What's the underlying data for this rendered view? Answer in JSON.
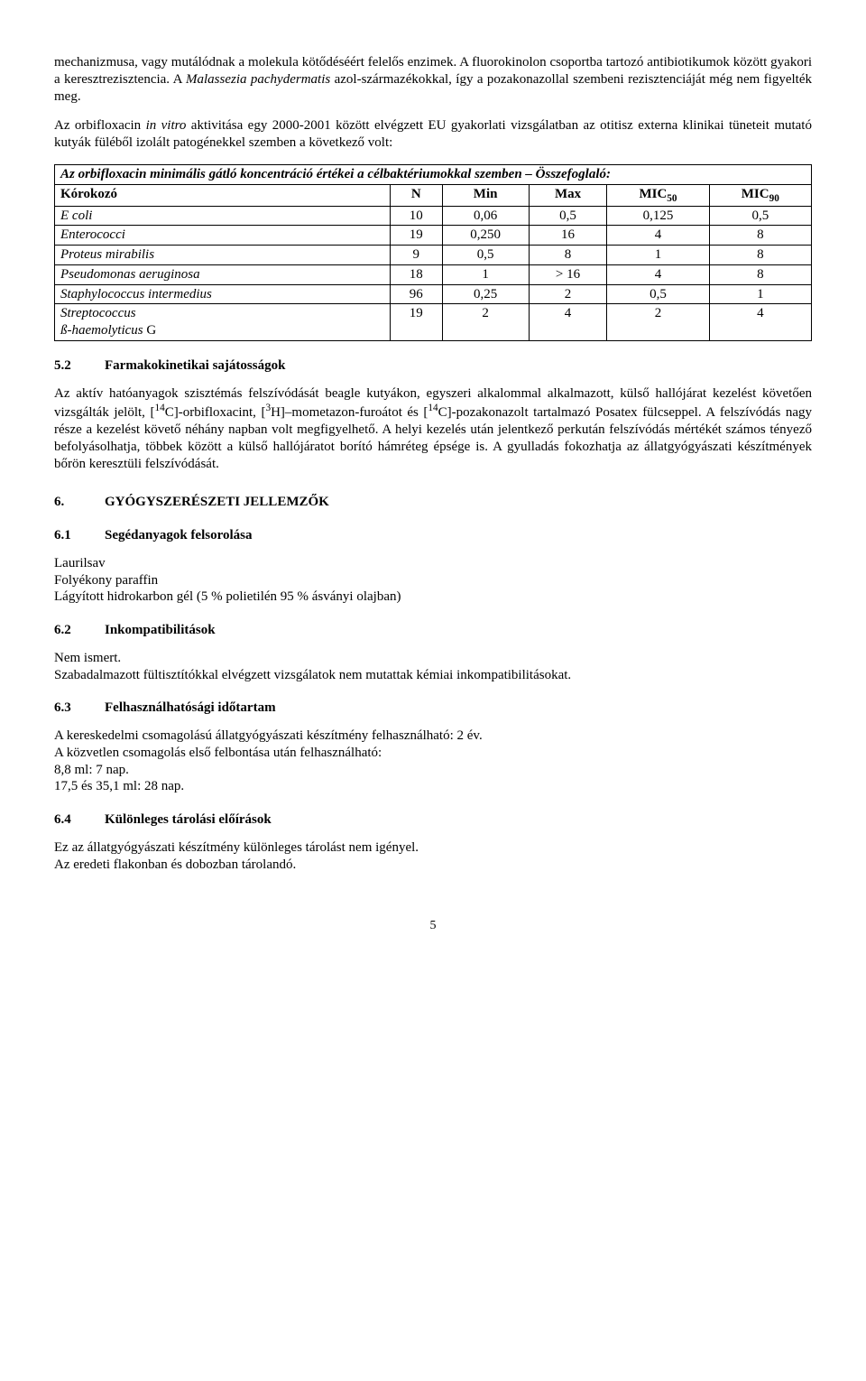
{
  "para_intro_1": "mechanizmusa, vagy mutálódnak a molekula kötődéséért felelős enzimek. A fluorokinolon csoportba tartozó antibiotikumok között gyakori a keresztrezisztencia. A ",
  "para_intro_1_italic": "Malassezia pachydermatis",
  "para_intro_1_tail": " azol-származékokkal, így a pozakonazollal szembeni rezisztenciáját még nem figyelték meg.",
  "para_intro_2a": "Az orbifloxacin ",
  "para_intro_2_italic": "in vitro",
  "para_intro_2b": " aktivitása egy 2000-2001 között elvégzett EU gyakorlati vizsgálatban az otitisz externa klinikai tüneteit mutató kutyák füléből izolált patogénekkel szemben a következő volt:",
  "table": {
    "caption": "Az orbifloxacin minimális gátló koncentráció értékei a célbaktériumokkal szemben – Összefoglaló:",
    "headers": {
      "c0": "Kórokozó",
      "c1": "N",
      "c2": "Min",
      "c3": "Max",
      "c4_pre": "MIC",
      "c4_sub": "50",
      "c5_pre": "MIC",
      "c5_sub": "90"
    },
    "rows": [
      {
        "name": "E coli",
        "italic": true,
        "n": "10",
        "min": "0,06",
        "max": "0,5",
        "mic50": "0,125",
        "mic90": "0,5"
      },
      {
        "name": "Enterococci",
        "italic": true,
        "n": "19",
        "min": "0,250",
        "max": "16",
        "mic50": "4",
        "mic90": "8"
      },
      {
        "name": "Proteus mirabilis",
        "italic": true,
        "n": "9",
        "min": "0,5",
        "max": "8",
        "mic50": "1",
        "mic90": "8"
      },
      {
        "name": "Pseudomonas aeruginosa",
        "italic": true,
        "n": "18",
        "min": "1",
        "max": "> 16",
        "mic50": "4",
        "mic90": "8"
      },
      {
        "name": "Staphylococcus intermedius",
        "italic": true,
        "n": "96",
        "min": "0,25",
        "max": "2",
        "mic50": "0,5",
        "mic90": "1"
      },
      {
        "name_a": "Streptococcus",
        "name_b": "ß-haemolyticus",
        "name_b_tail": " G",
        "italic_split": true,
        "n": "19",
        "min": "2",
        "max": "4",
        "mic50": "2",
        "mic90": "4"
      }
    ]
  },
  "s52_num": "5.2",
  "s52_title": "Farmakokinetikai sajátosságok",
  "para52_a": "Az aktív hatóanyagok szisztémás felszívódását beagle kutyákon, egyszeri alkalommal alkalmazott, külső hallójárat kezelést követően vizsgálták jelölt, [",
  "para52_sup1": "14",
  "para52_b": "C]-orbifloxacint, [",
  "para52_sup2": "3",
  "para52_c": "H]–mometazon-furoátot és [",
  "para52_sup3": "14",
  "para52_d": "C]-pozakonazolt tartalmazó Posatex fülcseppel. A felszívódás nagy része a kezelést követő néhány napban volt megfigyelhető. A helyi kezelés után jelentkező perkután felszívódás mértékét számos tényező befolyásolhatja, többek között a külső hallójáratot borító hámréteg épsége is. A gyulladás fokozhatja az állatgyógyászati készítmények bőrön keresztüli felszívódását.",
  "s6_num": "6.",
  "s6_title": "GYÓGYSZERÉSZETI JELLEMZŐK",
  "s61_num": "6.1",
  "s61_title": "Segédanyagok felsorolása",
  "s61_lines": [
    "Laurilsav",
    "Folyékony paraffin",
    "Lágyított hidrokarbon gél (5 % polietilén 95 % ásványi olajban)"
  ],
  "s62_num": "6.2",
  "s62_title": "Inkompatibilitások",
  "s62_lines": [
    "Nem ismert.",
    "Szabadalmazott fültisztítókkal elvégzett vizsgálatok nem mutattak kémiai inkompatibilitásokat."
  ],
  "s63_num": "6.3",
  "s63_title": "Felhasználhatósági időtartam",
  "s63_lines": [
    "A kereskedelmi csomagolású állatgyógyászati készítmény felhasználható: 2 év.",
    "A közvetlen csomagolás első felbontása után felhasználható:",
    "8,8 ml: 7 nap.",
    "17,5 és 35,1 ml: 28 nap."
  ],
  "s64_num": "6.4",
  "s64_title": "Különleges tárolási előírások",
  "s64_lines": [
    "Ez az állatgyógyászati készítmény különleges tárolást nem igényel.",
    "Az eredeti flakonban és dobozban tárolandó."
  ],
  "page_number": "5"
}
